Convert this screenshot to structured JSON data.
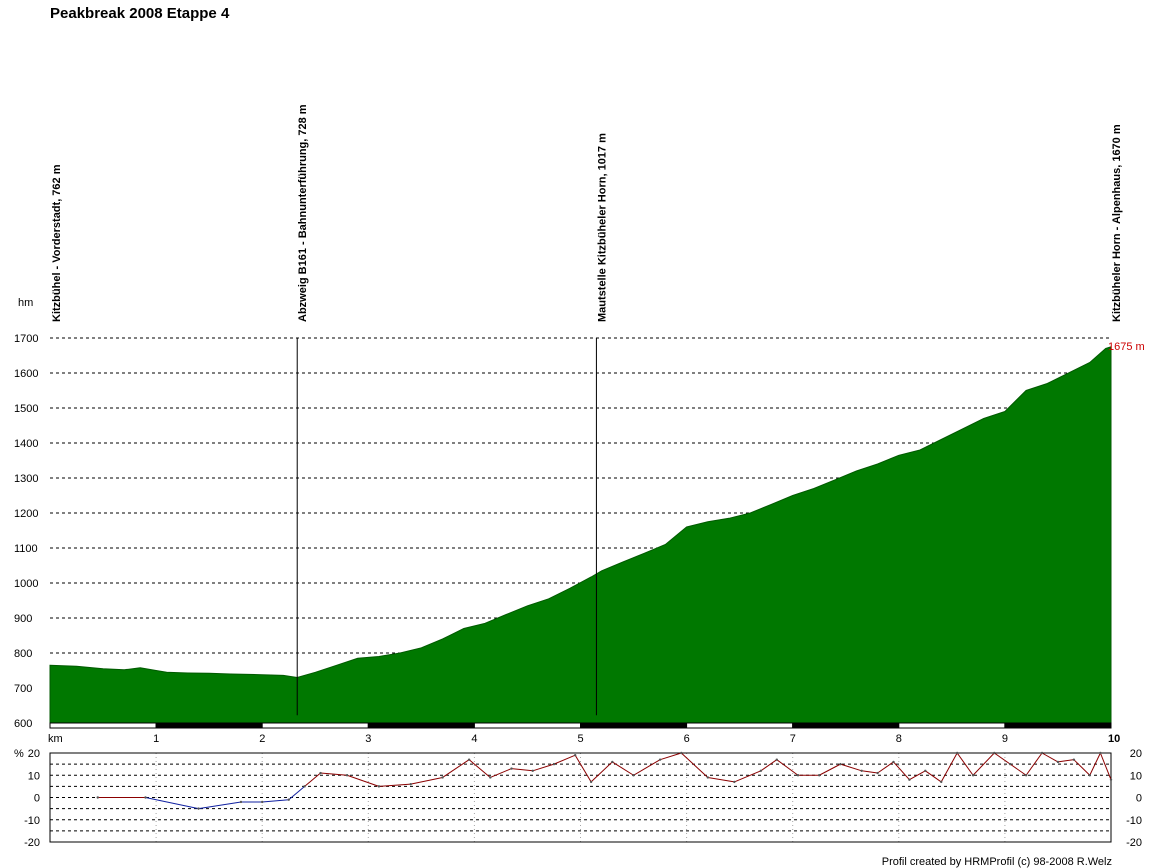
{
  "title": "Peakbreak 2008 Etappe 4",
  "footer": "Profil created by HRMProfil (c) 98-2008 R.Welz",
  "chart_data": [
    {
      "type": "area",
      "name_hint": "elevation-profile",
      "title": "",
      "xlabel": "km",
      "ylabel": "hm",
      "xlim": [
        0,
        10
      ],
      "ylim": [
        600,
        1700
      ],
      "x_ticks": [
        1,
        2,
        3,
        4,
        5,
        6,
        7,
        8,
        9,
        10
      ],
      "y_ticks": [
        600,
        700,
        800,
        900,
        1000,
        1100,
        1200,
        1300,
        1400,
        1500,
        1600,
        1700
      ],
      "fill_color": "#007800",
      "max_label": "1675 m",
      "x": [
        0,
        0.25,
        0.5,
        0.7,
        0.85,
        1.0,
        1.1,
        1.3,
        1.5,
        1.7,
        2.0,
        2.2,
        2.33,
        2.5,
        2.7,
        2.9,
        3.1,
        3.3,
        3.5,
        3.7,
        3.9,
        4.1,
        4.3,
        4.5,
        4.7,
        4.9,
        5.1,
        5.2,
        5.4,
        5.6,
        5.8,
        6.0,
        6.2,
        6.4,
        6.6,
        6.8,
        7.0,
        7.2,
        7.4,
        7.6,
        7.8,
        8.0,
        8.2,
        8.4,
        8.6,
        8.8,
        9.0,
        9.2,
        9.4,
        9.6,
        9.8,
        9.95,
        10.0
      ],
      "y": [
        765,
        762,
        755,
        752,
        758,
        750,
        745,
        743,
        742,
        740,
        738,
        736,
        730,
        745,
        765,
        785,
        790,
        800,
        815,
        840,
        870,
        885,
        910,
        935,
        955,
        985,
        1017,
        1035,
        1060,
        1085,
        1110,
        1160,
        1175,
        1185,
        1200,
        1225,
        1250,
        1270,
        1295,
        1320,
        1340,
        1365,
        1380,
        1410,
        1440,
        1470,
        1490,
        1550,
        1570,
        1600,
        1630,
        1670,
        1675
      ]
    },
    {
      "type": "line",
      "name_hint": "gradient-profile",
      "title": "",
      "ylabel": "%",
      "xlim": [
        0,
        10
      ],
      "ylim": [
        -20,
        20
      ],
      "y_ticks": [
        -20,
        -10,
        0,
        10,
        20
      ],
      "x": [
        0.45,
        0.9,
        1.4,
        1.8,
        2.0,
        2.25,
        2.4,
        2.55,
        2.8,
        3.1,
        3.4,
        3.7,
        3.95,
        4.15,
        4.35,
        4.55,
        4.75,
        4.95,
        5.1,
        5.3,
        5.5,
        5.75,
        5.95,
        6.2,
        6.45,
        6.7,
        6.85,
        7.05,
        7.25,
        7.45,
        7.65,
        7.8,
        7.95,
        8.1,
        8.25,
        8.4,
        8.55,
        8.7,
        8.9,
        9.05,
        9.2,
        9.35,
        9.5,
        9.65,
        9.8,
        9.9,
        10.0
      ],
      "y": [
        0,
        0,
        -5,
        -2,
        -2,
        -1,
        5,
        11,
        10,
        5,
        6,
        9,
        17,
        9,
        13,
        12,
        15,
        19,
        7,
        16,
        10,
        17,
        20,
        9,
        7,
        12,
        17,
        10,
        10,
        15,
        12,
        11,
        16,
        8,
        12,
        7,
        20,
        10,
        20,
        15,
        10,
        20,
        16,
        17,
        10,
        20,
        8
      ]
    }
  ],
  "waypoints": [
    {
      "km": 0.0,
      "label": "Kitzbühel - Vorderstadt, 762 m"
    },
    {
      "km": 2.33,
      "label": "Abzweig B161 - Bahnunterführung, 728 m"
    },
    {
      "km": 5.15,
      "label": "Mautstelle Kitzbüheler Horn, 1017 m"
    },
    {
      "km": 10.0,
      "label": "Kitzbüheler Horn - Alpenhaus, 1670 m"
    }
  ]
}
